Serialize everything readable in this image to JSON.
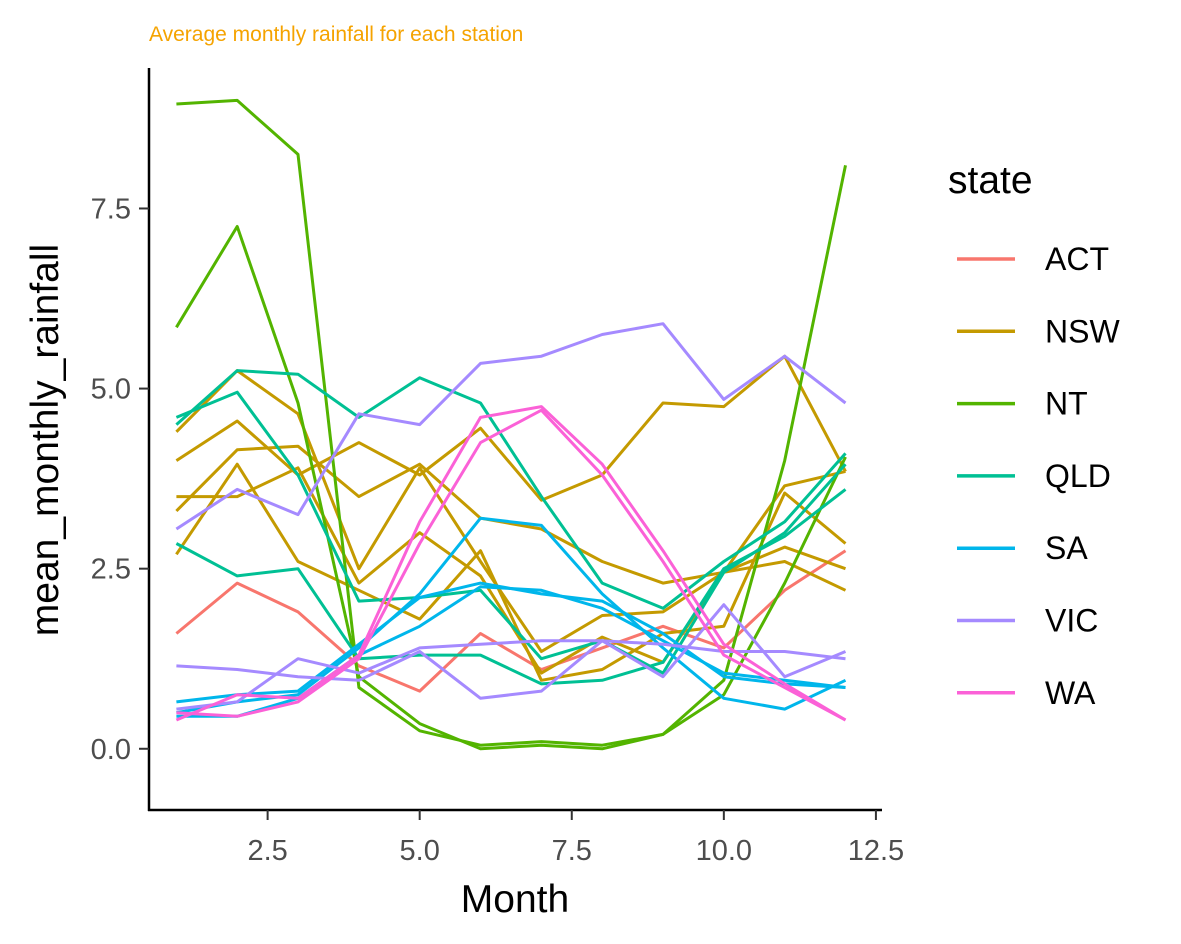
{
  "chart_data": {
    "type": "line",
    "title": "Average monthly rainfall for each station",
    "title_color": "#f5a300",
    "xlabel": "Month",
    "ylabel": "mean_monthly_rainfall",
    "xlim": [
      0.55,
      12.6
    ],
    "ylim": [
      -0.85,
      9.45
    ],
    "x_ticks": [
      {
        "value": 2.5,
        "label": "2.5"
      },
      {
        "value": 5.0,
        "label": "5.0"
      },
      {
        "value": 7.5,
        "label": "7.5"
      },
      {
        "value": 10.0,
        "label": "10.0"
      },
      {
        "value": 12.5,
        "label": "12.5"
      }
    ],
    "y_ticks": [
      {
        "value": 0.0,
        "label": "0.0"
      },
      {
        "value": 2.5,
        "label": "2.5"
      },
      {
        "value": 5.0,
        "label": "5.0"
      },
      {
        "value": 7.5,
        "label": "7.5"
      }
    ],
    "grid": false,
    "legend": {
      "title": "state",
      "position": "right",
      "entries": [
        {
          "name": "ACT",
          "color": "#f8766d"
        },
        {
          "name": "NSW",
          "color": "#c49a00"
        },
        {
          "name": "NT",
          "color": "#53b400"
        },
        {
          "name": "QLD",
          "color": "#00c094"
        },
        {
          "name": "SA",
          "color": "#00b6eb"
        },
        {
          "name": "VIC",
          "color": "#a58aff"
        },
        {
          "name": "WA",
          "color": "#fb61d7"
        }
      ]
    },
    "x": [
      1,
      2,
      3,
      4,
      5,
      6,
      7,
      8,
      9,
      10,
      11,
      12
    ],
    "series": [
      {
        "group": "ACT",
        "color": "#f8766d",
        "values": [
          1.6,
          2.3,
          1.9,
          1.15,
          0.8,
          1.6,
          1.1,
          1.4,
          1.7,
          1.4,
          2.2,
          2.75
        ]
      },
      {
        "group": "NSW",
        "color": "#c49a00",
        "values": [
          4.4,
          5.25,
          4.65,
          2.5,
          3.9,
          2.6,
          1.35,
          1.85,
          1.9,
          2.45,
          3.65,
          3.85
        ]
      },
      {
        "group": "NSW",
        "color": "#c49a00",
        "values": [
          4.0,
          4.55,
          3.8,
          4.25,
          3.8,
          4.45,
          3.45,
          3.8,
          4.8,
          4.75,
          5.45,
          3.85
        ]
      },
      {
        "group": "NSW",
        "color": "#c49a00",
        "values": [
          3.3,
          4.15,
          4.2,
          3.5,
          3.95,
          3.2,
          3.05,
          2.6,
          2.3,
          2.45,
          2.8,
          2.5
        ]
      },
      {
        "group": "NSW",
        "color": "#c49a00",
        "values": [
          2.7,
          3.95,
          2.6,
          2.2,
          1.8,
          2.75,
          0.95,
          1.1,
          1.6,
          1.7,
          3.55,
          2.85
        ]
      },
      {
        "group": "NSW",
        "color": "#c49a00",
        "values": [
          3.5,
          3.5,
          3.9,
          2.3,
          3.0,
          2.4,
          1.05,
          1.55,
          1.2,
          2.45,
          2.6,
          2.2
        ]
      },
      {
        "group": "NT",
        "color": "#53b400",
        "values": [
          8.95,
          9.0,
          8.25,
          0.85,
          0.25,
          0.05,
          0.1,
          0.05,
          0.2,
          0.95,
          4.0,
          8.1
        ]
      },
      {
        "group": "NT",
        "color": "#53b400",
        "values": [
          5.85,
          7.25,
          4.8,
          1.0,
          0.35,
          0.0,
          0.05,
          0.0,
          0.2,
          0.75,
          2.3,
          4.05
        ]
      },
      {
        "group": "QLD",
        "color": "#00c094",
        "values": [
          4.5,
          5.25,
          5.2,
          4.6,
          5.15,
          4.8,
          3.5,
          2.3,
          1.95,
          2.6,
          3.15,
          4.1
        ]
      },
      {
        "group": "QLD",
        "color": "#00c094",
        "values": [
          4.6,
          4.95,
          3.8,
          2.05,
          2.1,
          2.2,
          1.25,
          1.5,
          1.05,
          2.45,
          3.0,
          3.95
        ]
      },
      {
        "group": "QLD",
        "color": "#00c094",
        "values": [
          2.85,
          2.4,
          2.5,
          1.25,
          1.3,
          1.3,
          0.9,
          0.95,
          1.2,
          2.5,
          2.95,
          3.6
        ]
      },
      {
        "group": "SA",
        "color": "#00b6eb",
        "values": [
          0.5,
          0.65,
          0.75,
          1.4,
          2.15,
          3.2,
          3.1,
          2.15,
          1.4,
          0.7,
          0.55,
          0.95
        ]
      },
      {
        "group": "SA",
        "color": "#00b6eb",
        "values": [
          0.65,
          0.75,
          0.8,
          1.45,
          2.1,
          2.3,
          2.15,
          2.05,
          1.6,
          1.0,
          0.9,
          0.85
        ]
      },
      {
        "group": "SA",
        "color": "#00b6eb",
        "values": [
          0.45,
          0.45,
          0.7,
          1.3,
          1.7,
          2.25,
          2.2,
          1.95,
          1.5,
          1.05,
          0.95,
          0.85
        ]
      },
      {
        "group": "VIC",
        "color": "#a58aff",
        "values": [
          3.05,
          3.6,
          3.25,
          4.65,
          4.5,
          5.35,
          5.45,
          5.75,
          5.9,
          4.85,
          5.45,
          4.8
        ]
      },
      {
        "group": "VIC",
        "color": "#a58aff",
        "values": [
          1.15,
          1.1,
          1.0,
          0.95,
          1.35,
          0.7,
          0.8,
          1.5,
          1.0,
          2.0,
          1.0,
          1.35
        ]
      },
      {
        "group": "VIC",
        "color": "#a58aff",
        "values": [
          0.55,
          0.65,
          1.25,
          1.05,
          1.4,
          1.45,
          1.5,
          1.5,
          1.45,
          1.35,
          1.35,
          1.25
        ]
      },
      {
        "group": "WA",
        "color": "#fb61d7",
        "values": [
          0.4,
          0.75,
          0.7,
          1.3,
          3.15,
          4.6,
          4.75,
          3.95,
          2.75,
          1.45,
          0.9,
          0.4
        ]
      },
      {
        "group": "WA",
        "color": "#fb61d7",
        "values": [
          0.5,
          0.45,
          0.65,
          1.25,
          2.85,
          4.25,
          4.7,
          3.8,
          2.6,
          1.3,
          0.85,
          0.4
        ]
      }
    ]
  }
}
